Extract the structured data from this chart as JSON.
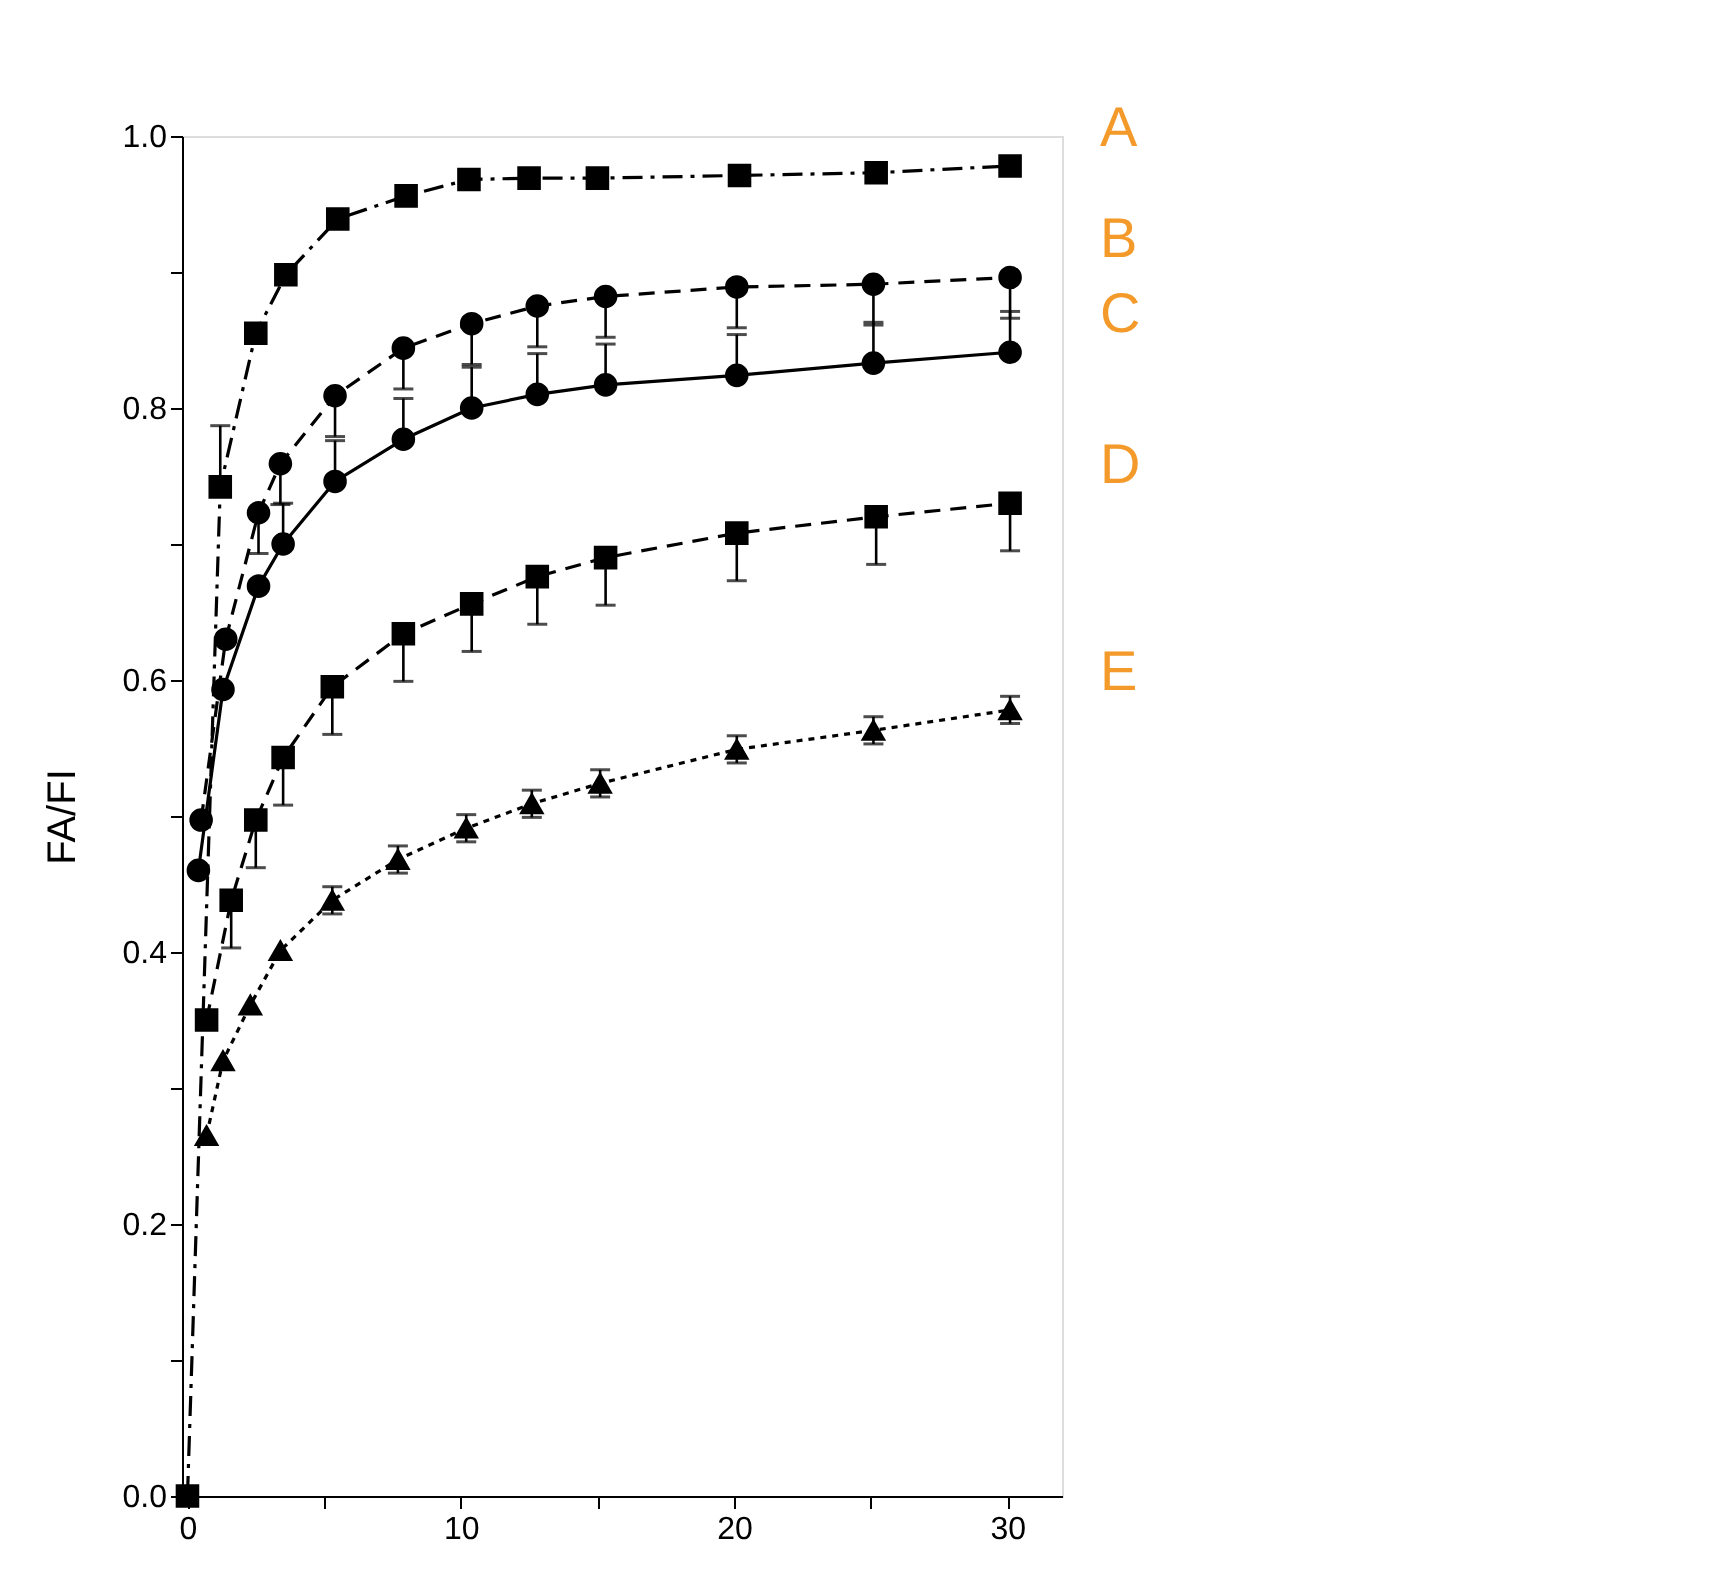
{
  "chart_data": {
    "type": "line",
    "ylabel": "FA/FI",
    "xlim": [
      -0.2,
      32
    ],
    "xticks": [
      0,
      {
        "value": 5,
        "label": null
      },
      10,
      {
        "value": 15,
        "label": null
      },
      20,
      {
        "value": 25,
        "label": null
      },
      30
    ],
    "ylim": [
      0,
      1.0
    ],
    "yticks": [
      {
        "value": 0,
        "label": "0.0"
      },
      {
        "value": 0.1,
        "label": null
      },
      {
        "value": 0.2,
        "label": "0.2"
      },
      {
        "value": 0.3,
        "label": null
      },
      {
        "value": 0.4,
        "label": "0.4"
      },
      {
        "value": 0.5,
        "label": null
      },
      {
        "value": 0.6,
        "label": "0.6"
      },
      {
        "value": 0.7,
        "label": null
      },
      {
        "value": 0.8,
        "label": "0.8"
      },
      {
        "value": 0.9,
        "label": null
      },
      {
        "value": 1.0,
        "label": "1.0"
      }
    ],
    "grid": false,
    "series": [
      {
        "name": "A",
        "color": "#000000",
        "marker": "square",
        "line_style": "dashdot",
        "x": [
          0,
          1.2,
          2.5,
          3.6,
          5.5,
          8,
          10.3,
          12.5,
          15,
          20.2,
          25.2,
          30.1
        ],
        "values": [
          0,
          0.742,
          0.855,
          0.898,
          0.939,
          0.956,
          0.968,
          0.969,
          0.969,
          0.971,
          0.973,
          0.978
        ],
        "errors": [
          null,
          [
            0.742,
            0.787
          ],
          null,
          null,
          null,
          null,
          null,
          null,
          null,
          null,
          null,
          null
        ]
      },
      {
        "name": "B",
        "color": "#000000",
        "marker": "circle",
        "line_style": "dashed",
        "x": [
          0.5,
          1.4,
          2.6,
          3.4,
          5.4,
          7.9,
          10.4,
          12.8,
          15.3,
          20.1,
          25.1,
          30.1
        ],
        "values": [
          0.497,
          0.63,
          0.723,
          0.759,
          0.809,
          0.844,
          0.862,
          0.875,
          0.882,
          0.889,
          0.891,
          0.896
        ],
        "errors": [
          null,
          null,
          [
            0.693,
            0.723
          ],
          [
            0.729,
            0.759
          ],
          [
            0.779,
            0.809
          ],
          [
            0.814,
            0.844
          ],
          [
            0.832,
            0.862
          ],
          [
            0.845,
            0.875
          ],
          [
            0.852,
            0.882
          ],
          [
            0.859,
            0.889
          ],
          [
            0.861,
            0.891
          ],
          [
            0.866,
            0.896
          ]
        ]
      },
      {
        "name": "C",
        "color": "#000000",
        "marker": "circle",
        "line_style": "solid",
        "x": [
          0.4,
          1.3,
          2.6,
          3.5,
          5.4,
          7.9,
          10.4,
          12.8,
          15.3,
          20.1,
          25.1,
          30.1
        ],
        "values": [
          0.46,
          0.593,
          0.669,
          0.7,
          0.746,
          0.777,
          0.8,
          0.81,
          0.817,
          0.824,
          0.833,
          0.841
        ],
        "errors": [
          null,
          null,
          null,
          [
            0.7,
            0.73
          ],
          [
            0.746,
            0.776
          ],
          [
            0.777,
            0.807
          ],
          [
            0.8,
            0.83
          ],
          [
            0.81,
            0.84
          ],
          [
            0.817,
            0.847
          ],
          [
            0.824,
            0.854
          ],
          [
            0.833,
            0.863
          ],
          [
            0.841,
            0.871
          ]
        ]
      },
      {
        "name": "D",
        "color": "#000000",
        "marker": "square",
        "line_style": "dashed",
        "x": [
          0.7,
          1.6,
          2.5,
          3.5,
          5.3,
          7.9,
          10.4,
          12.8,
          15.3,
          20.1,
          25.2,
          30.1
        ],
        "values": [
          0.35,
          0.438,
          0.497,
          0.543,
          0.595,
          0.634,
          0.656,
          0.676,
          0.69,
          0.708,
          0.72,
          0.73
        ],
        "errors": [
          null,
          [
            0.403,
            0.438
          ],
          [
            0.462,
            0.497
          ],
          [
            0.508,
            0.543
          ],
          [
            0.56,
            0.595
          ],
          [
            0.599,
            0.634
          ],
          [
            0.621,
            0.656
          ],
          [
            0.641,
            0.676
          ],
          [
            0.655,
            0.69
          ],
          [
            0.673,
            0.708
          ],
          [
            0.685,
            0.72
          ],
          [
            0.695,
            0.73
          ]
        ]
      },
      {
        "name": "E",
        "color": "#000000",
        "marker": "triangle",
        "line_style": "dotted",
        "x": [
          0.7,
          1.3,
          2.3,
          3.4,
          5.3,
          7.7,
          10.2,
          12.6,
          15.1,
          20.1,
          25.1,
          30.1
        ],
        "values": [
          0.265,
          0.32,
          0.361,
          0.401,
          0.438,
          0.468,
          0.491,
          0.509,
          0.524,
          0.549,
          0.563,
          0.578
        ],
        "errors": [
          null,
          null,
          null,
          null,
          0.01,
          0.01,
          0.01,
          0.01,
          0.01,
          0.01,
          0.01,
          0.01
        ]
      }
    ]
  }
}
